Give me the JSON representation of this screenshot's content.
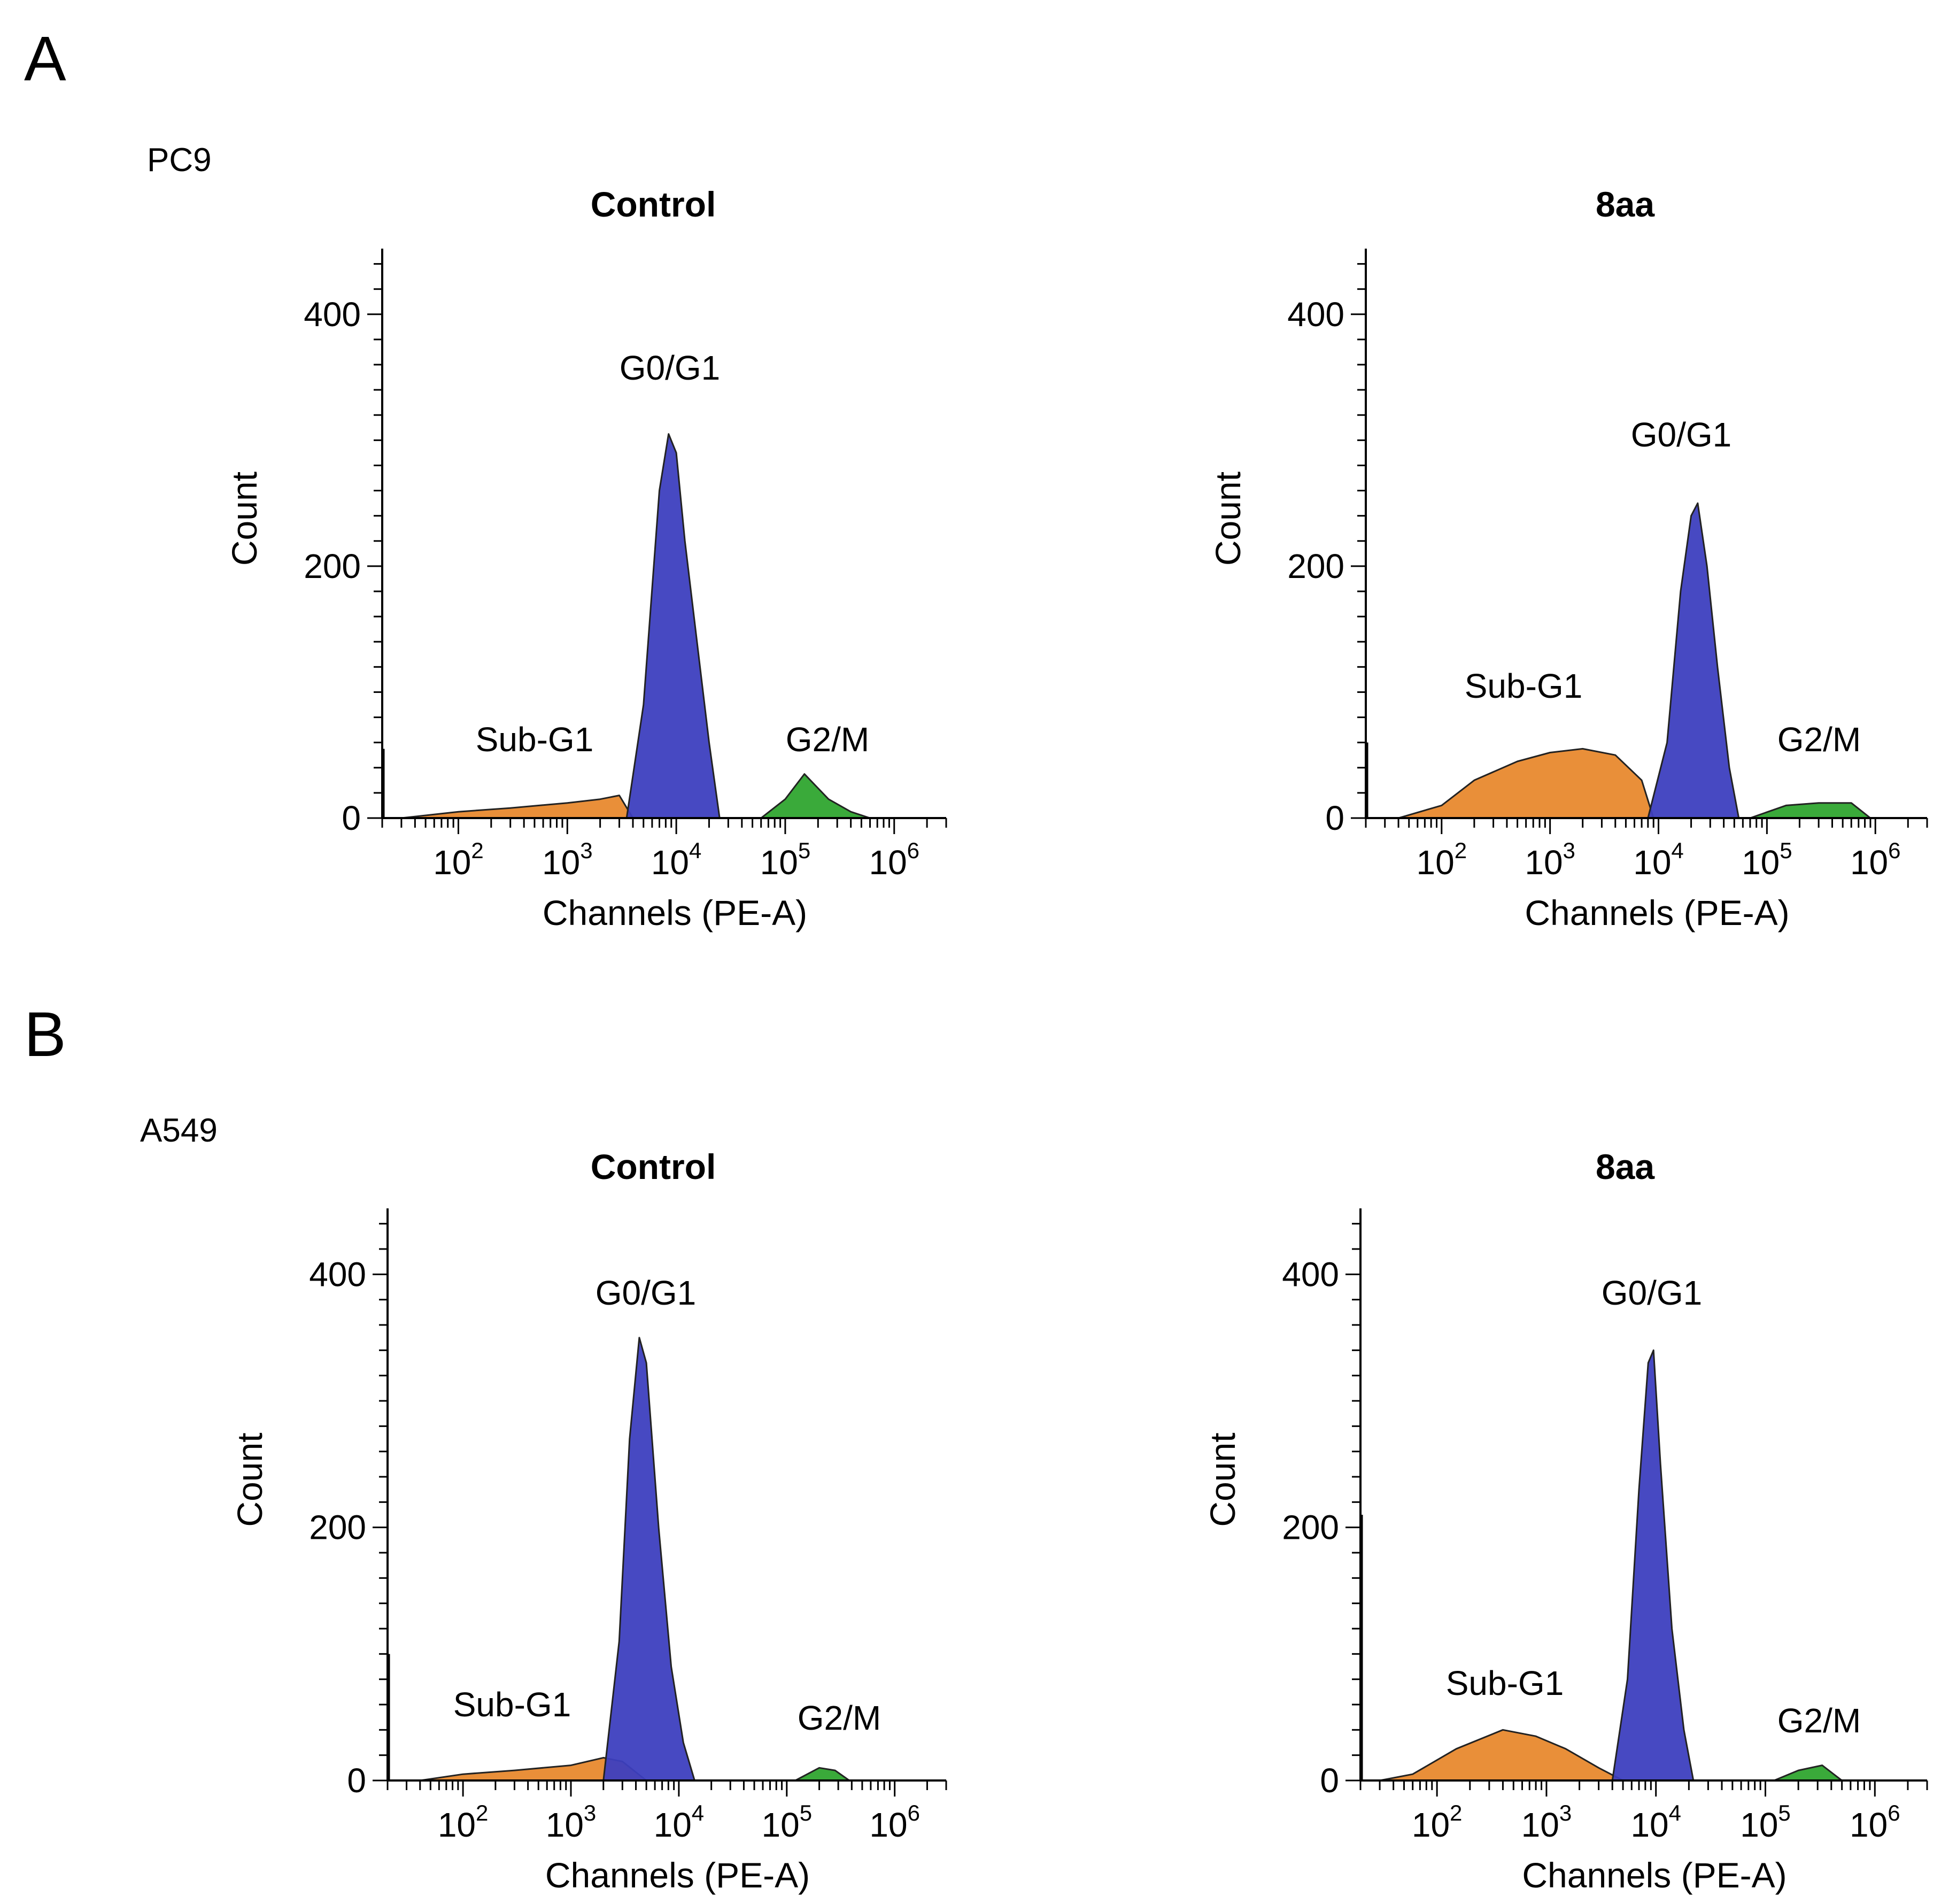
{
  "colors": {
    "sub_g1": "#E8892E",
    "g0_g1": "#3D3FBF",
    "g2_m": "#2FA52F",
    "envelope": "#9A9A9A",
    "axis": "#000000"
  },
  "panel_letters": [
    "A",
    "B"
  ],
  "row_labels": [
    "PC9",
    "A549"
  ],
  "chart_data": [
    {
      "type": "area",
      "title": "Control",
      "xlabel": "Channels (PE-A)",
      "ylabel": "Count",
      "x_scale": "log",
      "xlim": [
        20,
        3000000
      ],
      "ylim": [
        0,
        450
      ],
      "x_tick_labels": [
        "10^2",
        "10^3",
        "10^4",
        "10^5",
        "10^6"
      ],
      "y_ticks": [
        0,
        200,
        400
      ],
      "annotations": [
        "Sub-G1",
        "G0/G1",
        "G2/M"
      ],
      "debris_spike": 55,
      "series": [
        {
          "phase": "Sub-G1",
          "x": [
            30,
            100,
            300,
            1000,
            2000,
            3000,
            4000
          ],
          "y": [
            0,
            5,
            8,
            12,
            15,
            18,
            0
          ]
        },
        {
          "phase": "G0/G1",
          "x": [
            3500,
            5000,
            7000,
            8500,
            10000,
            12000,
            15000,
            20000,
            25000
          ],
          "y": [
            0,
            90,
            260,
            305,
            290,
            220,
            150,
            60,
            0
          ]
        },
        {
          "phase": "G2/M",
          "x": [
            60000,
            100000,
            150000,
            250000,
            400000,
            600000
          ],
          "y": [
            0,
            15,
            35,
            15,
            5,
            0
          ]
        }
      ]
    },
    {
      "type": "area",
      "title": "8aa",
      "xlabel": "Channels (PE-A)",
      "ylabel": "Count",
      "x_scale": "log",
      "xlim": [
        20,
        3000000
      ],
      "ylim": [
        0,
        450
      ],
      "x_tick_labels": [
        "10^2",
        "10^3",
        "10^4",
        "10^5",
        "10^6"
      ],
      "y_ticks": [
        0,
        200,
        400
      ],
      "annotations": [
        "Sub-G1",
        "G0/G1",
        "G2/M"
      ],
      "debris_spike": 60,
      "series": [
        {
          "phase": "Sub-G1",
          "x": [
            40,
            100,
            200,
            500,
            1000,
            2000,
            4000,
            7000,
            9000
          ],
          "y": [
            0,
            10,
            30,
            45,
            52,
            55,
            50,
            30,
            0
          ]
        },
        {
          "phase": "G0/G1",
          "x": [
            8000,
            12000,
            16000,
            20000,
            23000,
            28000,
            35000,
            45000,
            55000
          ],
          "y": [
            0,
            60,
            180,
            240,
            250,
            200,
            120,
            40,
            0
          ]
        },
        {
          "phase": "G2/M",
          "x": [
            70000,
            150000,
            300000,
            600000,
            900000
          ],
          "y": [
            0,
            10,
            12,
            12,
            0
          ]
        }
      ]
    },
    {
      "type": "area",
      "title": "Control",
      "xlabel": "Channels (PE-A)",
      "ylabel": "Count",
      "x_scale": "log",
      "xlim": [
        20,
        3000000
      ],
      "ylim": [
        0,
        450
      ],
      "x_tick_labels": [
        "10^2",
        "10^3",
        "10^4",
        "10^5",
        "10^6"
      ],
      "y_ticks": [
        0,
        200,
        400
      ],
      "annotations": [
        "Sub-G1",
        "G0/G1",
        "G2/M"
      ],
      "debris_spike": 100,
      "series": [
        {
          "phase": "Sub-G1",
          "x": [
            40,
            100,
            300,
            1000,
            2000,
            3000,
            5000
          ],
          "y": [
            0,
            5,
            8,
            12,
            18,
            15,
            0
          ]
        },
        {
          "phase": "G0/G1",
          "x": [
            2000,
            2800,
            3500,
            4300,
            5000,
            6500,
            8500,
            11000,
            14000
          ],
          "y": [
            0,
            110,
            270,
            350,
            330,
            200,
            90,
            30,
            0
          ]
        },
        {
          "phase": "G2/M",
          "x": [
            120000,
            200000,
            280000,
            380000
          ],
          "y": [
            0,
            10,
            8,
            0
          ]
        }
      ]
    },
    {
      "type": "area",
      "title": "8aa",
      "xlabel": "Channels (PE-A)",
      "ylabel": "Count",
      "x_scale": "log",
      "xlim": [
        20,
        3000000
      ],
      "ylim": [
        0,
        450
      ],
      "x_tick_labels": [
        "10^2",
        "10^3",
        "10^4",
        "10^5",
        "10^6"
      ],
      "y_ticks": [
        0,
        200,
        400
      ],
      "annotations": [
        "Sub-G1",
        "G0/G1",
        "G2/M"
      ],
      "debris_spike": 210,
      "series": [
        {
          "phase": "Sub-G1",
          "x": [
            30,
            60,
            150,
            400,
            800,
            1500,
            3000,
            5000
          ],
          "y": [
            0,
            5,
            25,
            40,
            35,
            25,
            10,
            0
          ]
        },
        {
          "phase": "G0/G1",
          "x": [
            4000,
            5500,
            7000,
            8500,
            9500,
            11000,
            14000,
            18000,
            22000
          ],
          "y": [
            0,
            80,
            230,
            330,
            340,
            250,
            120,
            40,
            0
          ]
        },
        {
          "phase": "G2/M",
          "x": [
            120000,
            200000,
            330000,
            500000
          ],
          "y": [
            0,
            8,
            12,
            0
          ]
        }
      ]
    }
  ]
}
